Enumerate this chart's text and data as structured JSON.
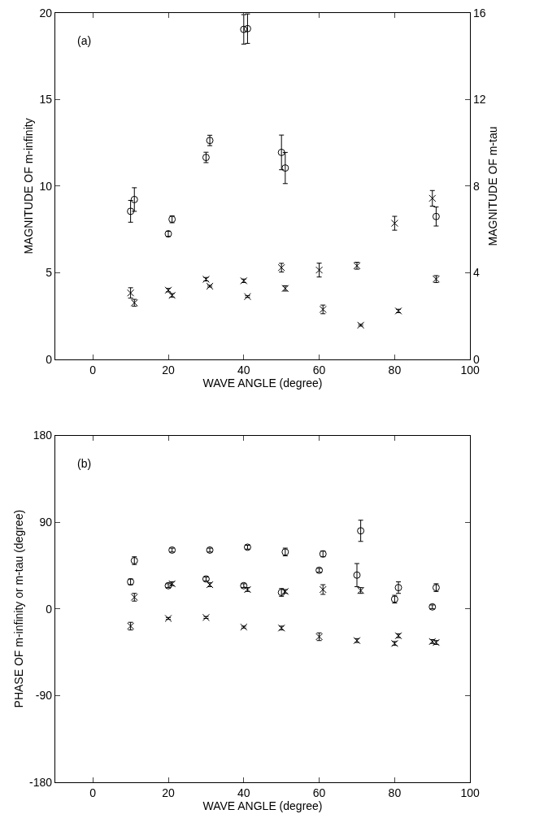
{
  "chart_data": [
    {
      "type": "scatter",
      "xlabel": "WAVE ANGLE (degree)",
      "ylabel": "MAGNITUDE OF m-infinity",
      "y2label": "MAGNITUDE OF m-tau",
      "annotations": [
        "(a)"
      ],
      "xlim": [
        -10,
        100
      ],
      "xticks": [
        0,
        20,
        40,
        60,
        80,
        100
      ],
      "ylim": [
        0,
        20
      ],
      "yticks": [
        0,
        5,
        10,
        15,
        20
      ],
      "y2lim": [
        0,
        16
      ],
      "y2ticks": [
        0,
        4,
        8,
        12,
        16
      ],
      "series": [
        {
          "color": "#000000",
          "marker": "circle",
          "x": [
            10,
            11,
            20,
            21,
            30,
            31,
            40,
            41,
            50,
            51,
            91
          ],
          "values": [
            8.55,
            9.23,
            7.25,
            8.09,
            11.66,
            12.64,
            19.05,
            19.09,
            11.95,
            11.05,
            8.25
          ],
          "errors": [
            0.63,
            0.68,
            0.15,
            0.2,
            0.3,
            0.3,
            0.85,
            0.85,
            1.0,
            0.9,
            0.55
          ]
        },
        {
          "color": "#000000",
          "marker": "cross",
          "x": [
            10,
            11,
            20,
            21,
            30,
            31,
            40,
            41,
            50,
            51,
            60,
            61,
            70,
            71,
            80,
            81,
            90,
            91
          ],
          "values": [
            3.84,
            3.27,
            4.0,
            3.7,
            4.63,
            4.23,
            4.54,
            3.63,
            5.3,
            4.1,
            5.16,
            2.89,
            5.41,
            1.98,
            7.86,
            2.8,
            9.3,
            4.64
          ],
          "errors": [
            0.3,
            0.2,
            0.1,
            0.1,
            0.1,
            0.05,
            0.1,
            0.05,
            0.25,
            0.15,
            0.4,
            0.25,
            0.2,
            0.05,
            0.4,
            0.1,
            0.45,
            0.2
          ]
        }
      ]
    },
    {
      "type": "scatter",
      "xlabel": "WAVE ANGLE (degree)",
      "ylabel": "PHASE OF m-infinity or m-tau (degree)",
      "annotations": [
        "(b)"
      ],
      "xlim": [
        -10,
        100
      ],
      "xticks": [
        0,
        20,
        40,
        60,
        80,
        100
      ],
      "ylim": [
        -180,
        180
      ],
      "yticks": [
        -180,
        -90,
        0,
        90,
        180
      ],
      "series": [
        {
          "color": "#000000",
          "marker": "circle",
          "x": [
            10,
            11,
            20,
            21,
            30,
            31,
            40,
            41,
            50,
            51,
            60,
            61,
            70,
            71,
            80,
            81,
            90,
            91
          ],
          "values": [
            28,
            50,
            24,
            61,
            31,
            61,
            24,
            64,
            17,
            59,
            40,
            57,
            35,
            81,
            10,
            22,
            2,
            22
          ],
          "errors": [
            3,
            4,
            2,
            2,
            2,
            2,
            2,
            2,
            4,
            4,
            2,
            3,
            12,
            11,
            4,
            6,
            2,
            4
          ]
        },
        {
          "color": "#000000",
          "marker": "cross",
          "x": [
            10,
            11,
            20,
            21,
            30,
            31,
            40,
            41,
            50,
            51,
            60,
            61,
            70,
            71,
            80,
            81,
            90,
            91
          ],
          "values": [
            -18,
            12,
            -10,
            26,
            -9,
            25,
            -19,
            20,
            -20,
            18,
            -29,
            20,
            -33,
            19,
            -36,
            -28,
            -34,
            -35
          ],
          "errors": [
            4,
            4,
            1,
            2,
            1,
            2,
            1,
            2,
            2,
            2,
            4,
            5,
            2,
            3,
            2,
            2,
            2,
            2
          ]
        }
      ]
    }
  ]
}
